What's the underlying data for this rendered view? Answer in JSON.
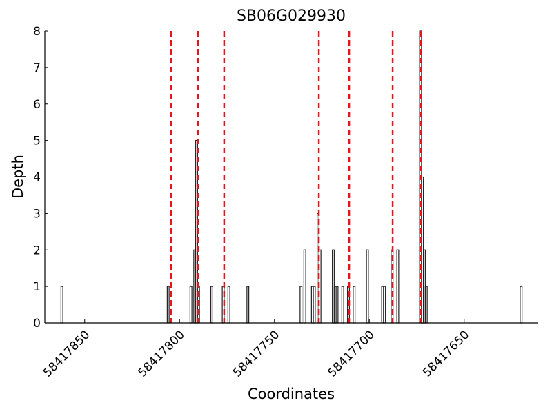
{
  "chart_data": {
    "type": "bar",
    "title": "SB06G029930",
    "x_label": "Coordinates",
    "y_label": "Depth",
    "x": [
      58417862,
      58417806,
      58417794,
      58417792,
      58417791,
      58417790,
      58417783,
      58417777,
      58417774,
      58417764,
      58417736,
      58417734,
      58417730,
      58417729,
      58417727,
      58417726,
      58417719,
      58417718,
      58417717,
      58417714,
      58417711,
      58417708,
      58417701,
      58417693,
      58417692,
      58417688,
      58417685,
      58417673,
      58417672,
      58417671,
      58417670,
      58417620
    ],
    "values": [
      1,
      1,
      1,
      2,
      5,
      1,
      1,
      1,
      1,
      1,
      1,
      2,
      1,
      1,
      3,
      2,
      2,
      1,
      1,
      1,
      1,
      1,
      2,
      1,
      1,
      2,
      2,
      8,
      4,
      2,
      1,
      1
    ],
    "color": "#ffffff",
    "edge_color": "#222222",
    "vlines": {
      "x": [
        58417804.5,
        58417790.3,
        58417776.5,
        58417726.6,
        58417710.6,
        58417687.7,
        58417672.8
      ],
      "color": "#e8141c"
    },
    "xlim": [
      58417871,
      58417611
    ],
    "ylim": [
      0,
      8
    ],
    "xticks": [
      58417850,
      58417800,
      58417750,
      58417700,
      58417650
    ],
    "yticks": [
      0,
      1,
      2,
      3,
      4,
      5,
      6,
      7,
      8
    ]
  }
}
